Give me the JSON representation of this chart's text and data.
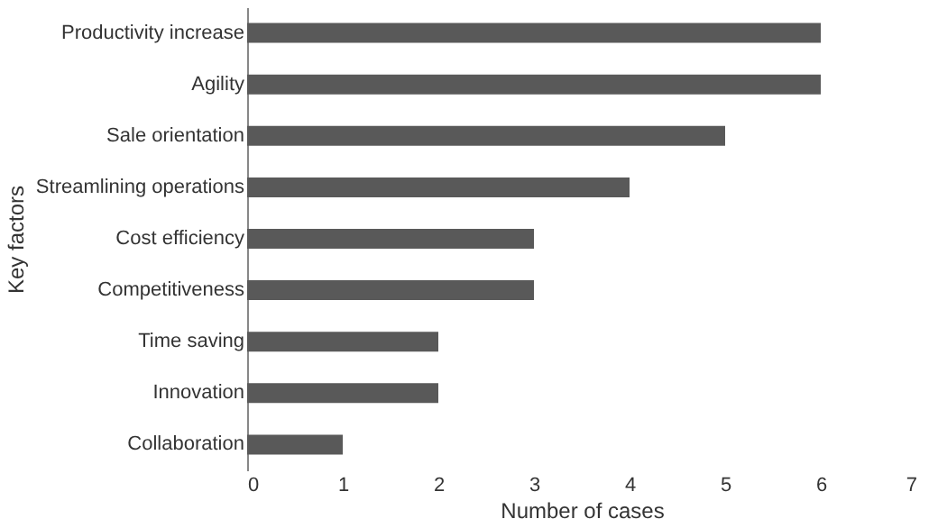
{
  "chart_data": {
    "type": "bar",
    "orientation": "horizontal",
    "xlabel": "Number of cases",
    "ylabel": "Key factors",
    "categories": [
      "Productivity increase",
      "Agility",
      "Sale orientation",
      "Streamlining operations",
      "Cost efficiency",
      "Competitiveness",
      "Time saving",
      "Innovation",
      "Collaboration"
    ],
    "values": [
      6,
      6,
      5,
      4,
      3,
      3,
      2,
      2,
      1
    ],
    "color": "#595959",
    "xlim": [
      0,
      7
    ],
    "xticks": [
      0,
      1,
      2,
      3,
      4,
      5,
      6,
      7
    ],
    "grid": false
  }
}
